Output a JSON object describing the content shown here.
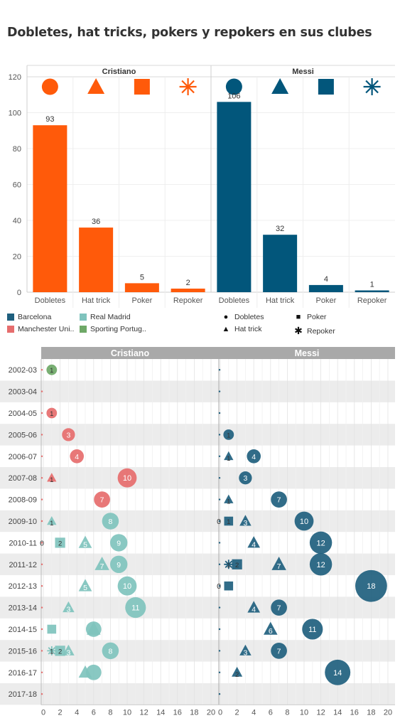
{
  "title": "Dobletes, hat tricks, pokers y repokers en sus clubes",
  "chart_data": [
    {
      "type": "bar",
      "panels": [
        "Cristiano",
        "Messi"
      ],
      "categories": [
        "Dobletes",
        "Hat trick",
        "Poker",
        "Repoker"
      ],
      "series": [
        {
          "panel": "Cristiano",
          "values": [
            93,
            36,
            5,
            2
          ],
          "color": "#ff5a0a"
        },
        {
          "panel": "Messi",
          "values": [
            106,
            32,
            4,
            1
          ],
          "color": "#02567b"
        }
      ],
      "ylim": [
        0,
        120
      ],
      "yticks": [
        "0",
        "20",
        "40",
        "60",
        "80",
        "100",
        "120"
      ],
      "header_shapes": [
        "circle",
        "triangle",
        "square",
        "asterisk"
      ]
    },
    {
      "type": "scatter",
      "panels": [
        "Cristiano",
        "Messi"
      ],
      "seasons": [
        "2002-03",
        "2003-04",
        "2004-05",
        "2005-06",
        "2006-07",
        "2007-08",
        "2008-09",
        "2009-10",
        "2010-11",
        "2011-12",
        "2012-13",
        "2013-14",
        "2014-15",
        "2015-16",
        "2016-17",
        "2017-18"
      ],
      "xlim": [
        0,
        20
      ],
      "xticks": [
        "0",
        "2",
        "4",
        "6",
        "8",
        "10",
        "12",
        "14",
        "16",
        "18",
        "20"
      ],
      "points": {
        "Cristiano": [
          {
            "season": "2002-03",
            "type": "Dobletes",
            "value": 1,
            "club": "Sporting Portugal",
            "label": "1"
          },
          {
            "season": "2004-05",
            "type": "Dobletes",
            "value": 1,
            "club": "Manchester United",
            "label": "1"
          },
          {
            "season": "2005-06",
            "type": "Dobletes",
            "value": 3,
            "club": "Manchester United",
            "label": "3"
          },
          {
            "season": "2006-07",
            "type": "Dobletes",
            "value": 4,
            "club": "Manchester United",
            "label": "4"
          },
          {
            "season": "2007-08",
            "type": "Dobletes",
            "value": 10,
            "club": "Manchester United",
            "label": "10"
          },
          {
            "season": "2007-08",
            "type": "Hat trick",
            "value": 1,
            "club": "Manchester United",
            "label": "1"
          },
          {
            "season": "2008-09",
            "type": "Dobletes",
            "value": 7,
            "club": "Manchester United",
            "label": "7"
          },
          {
            "season": "2009-10",
            "type": "Dobletes",
            "value": 8,
            "club": "Real Madrid",
            "label": "8"
          },
          {
            "season": "2009-10",
            "type": "Hat trick",
            "value": 1,
            "club": "Real Madrid",
            "label": "1"
          },
          {
            "season": "2010-11",
            "type": "Dobletes",
            "value": 9,
            "club": "Real Madrid",
            "label": "9"
          },
          {
            "season": "2010-11",
            "type": "Hat trick",
            "value": 5,
            "club": "Real Madrid",
            "label": "5"
          },
          {
            "season": "2010-11",
            "type": "Poker",
            "value": 2,
            "club": "Real Madrid",
            "label": "2"
          },
          {
            "season": "2011-12",
            "type": "Dobletes",
            "value": 9,
            "club": "Real Madrid",
            "label": "9"
          },
          {
            "season": "2011-12",
            "type": "Hat trick",
            "value": 7,
            "club": "Real Madrid",
            "label": "7"
          },
          {
            "season": "2012-13",
            "type": "Dobletes",
            "value": 10,
            "club": "Real Madrid",
            "label": "10"
          },
          {
            "season": "2012-13",
            "type": "Hat trick",
            "value": 5,
            "club": "Real Madrid",
            "label": "5"
          },
          {
            "season": "2013-14",
            "type": "Dobletes",
            "value": 11,
            "club": "Real Madrid",
            "label": "11"
          },
          {
            "season": "2013-14",
            "type": "Hat trick",
            "value": 3,
            "club": "Real Madrid",
            "label": "3"
          },
          {
            "season": "2014-15",
            "type": "Dobletes",
            "value": 6,
            "club": "Real Madrid",
            "label": ""
          },
          {
            "season": "2014-15",
            "type": "Hat trick",
            "value": 6,
            "club": "Real Madrid",
            "label": ""
          },
          {
            "season": "2014-15",
            "type": "Poker",
            "value": 1,
            "club": "Real Madrid",
            "label": ""
          },
          {
            "season": "2015-16",
            "type": "Dobletes",
            "value": 8,
            "club": "Real Madrid",
            "label": "8"
          },
          {
            "season": "2015-16",
            "type": "Hat trick",
            "value": 3,
            "club": "Real Madrid",
            "label": "3"
          },
          {
            "season": "2015-16",
            "type": "Poker",
            "value": 2,
            "club": "Real Madrid",
            "label": "2"
          },
          {
            "season": "2015-16",
            "type": "Repoker",
            "value": 1,
            "club": "Real Madrid",
            "label": "1"
          },
          {
            "season": "2016-17",
            "type": "Dobletes",
            "value": 6,
            "club": "Real Madrid",
            "label": ""
          },
          {
            "season": "2016-17",
            "type": "Hat trick",
            "value": 5,
            "club": "Real Madrid",
            "label": ""
          }
        ],
        "Messi": [
          {
            "season": "2005-06",
            "type": "Dobletes",
            "value": 1,
            "club": "Barcelona",
            "label": "1"
          },
          {
            "season": "2006-07",
            "type": "Dobletes",
            "value": 4,
            "club": "Barcelona",
            "label": "4"
          },
          {
            "season": "2006-07",
            "type": "Hat trick",
            "value": 1,
            "club": "Barcelona",
            "label": "1"
          },
          {
            "season": "2007-08",
            "type": "Dobletes",
            "value": 3,
            "club": "Barcelona",
            "label": "3"
          },
          {
            "season": "2008-09",
            "type": "Dobletes",
            "value": 7,
            "club": "Barcelona",
            "label": "7"
          },
          {
            "season": "2008-09",
            "type": "Hat trick",
            "value": 1,
            "club": "Barcelona",
            "label": "1"
          },
          {
            "season": "2009-10",
            "type": "Dobletes",
            "value": 10,
            "club": "Barcelona",
            "label": "10"
          },
          {
            "season": "2009-10",
            "type": "Hat trick",
            "value": 3,
            "club": "Barcelona",
            "label": "3"
          },
          {
            "season": "2009-10",
            "type": "Poker",
            "value": 1,
            "club": "Barcelona",
            "label": "1"
          },
          {
            "season": "2010-11",
            "type": "Dobletes",
            "value": 12,
            "club": "Barcelona",
            "label": "12"
          },
          {
            "season": "2010-11",
            "type": "Hat trick",
            "value": 4,
            "club": "Barcelona",
            "label": "4"
          },
          {
            "season": "2011-12",
            "type": "Dobletes",
            "value": 12,
            "club": "Barcelona",
            "label": "12"
          },
          {
            "season": "2011-12",
            "type": "Hat trick",
            "value": 7,
            "club": "Barcelona",
            "label": "7"
          },
          {
            "season": "2011-12",
            "type": "Poker",
            "value": 2,
            "club": "Barcelona",
            "label": "2"
          },
          {
            "season": "2011-12",
            "type": "Repoker",
            "value": 1,
            "club": "Barcelona",
            "label": "1"
          },
          {
            "season": "2012-13",
            "type": "Dobletes",
            "value": 18,
            "club": "Barcelona",
            "label": "18"
          },
          {
            "season": "2012-13",
            "type": "Poker",
            "value": 1,
            "club": "Barcelona",
            "label": ""
          },
          {
            "season": "2013-14",
            "type": "Dobletes",
            "value": 7,
            "club": "Barcelona",
            "label": "7"
          },
          {
            "season": "2013-14",
            "type": "Hat trick",
            "value": 4,
            "club": "Barcelona",
            "label": "4"
          },
          {
            "season": "2014-15",
            "type": "Dobletes",
            "value": 11,
            "club": "Barcelona",
            "label": "11"
          },
          {
            "season": "2014-15",
            "type": "Hat trick",
            "value": 6,
            "club": "Barcelona",
            "label": "6"
          },
          {
            "season": "2015-16",
            "type": "Dobletes",
            "value": 7,
            "club": "Barcelona",
            "label": "7"
          },
          {
            "season": "2015-16",
            "type": "Hat trick",
            "value": 3,
            "club": "Barcelona",
            "label": "3"
          },
          {
            "season": "2016-17",
            "type": "Dobletes",
            "value": 14,
            "club": "Barcelona",
            "label": "14"
          },
          {
            "season": "2016-17",
            "type": "Hat trick",
            "value": 2,
            "club": "Barcelona",
            "label": "2"
          }
        ]
      },
      "zero_labels": [
        {
          "panel": "Cristiano",
          "season": "2010-11",
          "label": "0"
        },
        {
          "panel": "Messi",
          "season": "2009-10",
          "label": "0"
        },
        {
          "panel": "Messi",
          "season": "2012-13",
          "label": "0"
        }
      ]
    }
  ],
  "legend": {
    "clubs": [
      {
        "label": "Barcelona",
        "color": "#1f5f7e"
      },
      {
        "label": "Real Madrid",
        "color": "#7fc3bd"
      },
      {
        "label": "Manchester Uni..",
        "color": "#e66d6d"
      },
      {
        "label": "Sporting Portug..",
        "color": "#6ea867"
      }
    ],
    "shapes": [
      {
        "label": "Dobletes",
        "icon": "circle"
      },
      {
        "label": "Poker",
        "icon": "square"
      },
      {
        "label": "Hat trick",
        "icon": "triangle"
      },
      {
        "label": "Repoker",
        "icon": "asterisk"
      }
    ]
  },
  "colors": {
    "Barcelona": "#1f5f7e",
    "Real Madrid": "#7fc3bd",
    "Manchester United": "#e66d6d",
    "Sporting Portugal": "#6ea867"
  }
}
